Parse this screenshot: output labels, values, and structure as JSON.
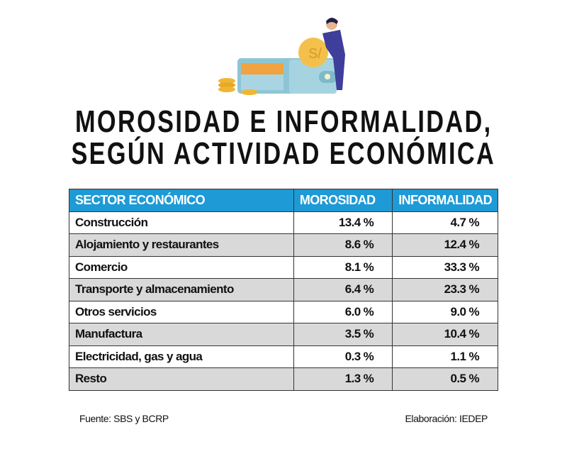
{
  "title": {
    "line1": "MOROSIDAD E INFORMALIDAD,",
    "line2": "SEGÚN ACTIVIDAD ECONÓMICA"
  },
  "colors": {
    "header": "#1e9ad6",
    "row_alt": "#d9d9d9"
  },
  "chart_data": {
    "type": "table",
    "title": "MOROSIDAD E INFORMALIDAD, SEGÚN ACTIVIDAD ECONÓMICA",
    "columns": [
      "SECTOR ECONÓMICO",
      "MOROSIDAD",
      "INFORMALIDAD"
    ],
    "rows": [
      {
        "sector": "Construcción",
        "morosidad": "13.4 %",
        "informalidad": "4.7 %"
      },
      {
        "sector": "Alojamiento y restaurantes",
        "morosidad": "8.6 %",
        "informalidad": "12.4 %"
      },
      {
        "sector": "Comercio",
        "morosidad": "8.1 %",
        "informalidad": "33.3 %"
      },
      {
        "sector": "Transporte y almacenamiento",
        "morosidad": "6.4 %",
        "informalidad": "23.3 %"
      },
      {
        "sector": "Otros servicios",
        "morosidad": "6.0 %",
        "informalidad": "9.0 %"
      },
      {
        "sector": "Manufactura",
        "morosidad": "3.5 %",
        "informalidad": "10.4 %"
      },
      {
        "sector": "Electricidad, gas y agua",
        "morosidad": "0.3 %",
        "informalidad": "1.1 %"
      },
      {
        "sector": "Resto",
        "morosidad": "1.3 %",
        "informalidad": "0.5 %"
      }
    ]
  },
  "footer": {
    "source": "Fuente: SBS y BCRP",
    "credit": "Elaboración: IEDEP"
  }
}
